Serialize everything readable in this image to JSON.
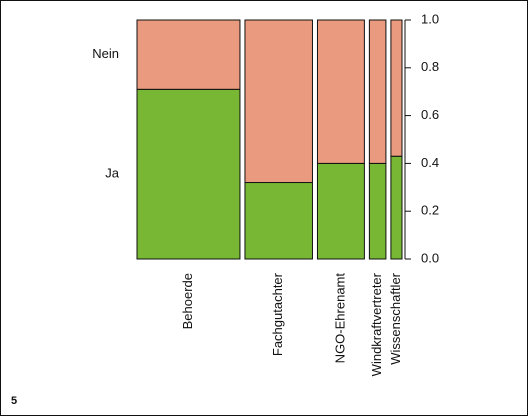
{
  "panel_label": "5",
  "chart_data": {
    "type": "mosaic",
    "categories": [
      "Behoerde",
      "Fachgutachter",
      "NGO-Ehrenamt",
      "Windkraftvertreter",
      "Wissenschaftler"
    ],
    "widths": [
      0.3836,
      0.2515,
      0.1748,
      0.0616,
      0.0413
    ],
    "series": [
      {
        "name": "Ja",
        "values": [
          0.71,
          0.32,
          0.4,
          0.4,
          0.43
        ],
        "color": "#77b733"
      },
      {
        "name": "Nein",
        "values": [
          0.29,
          0.68,
          0.6,
          0.6,
          0.57
        ],
        "color": "#ea9a7f"
      }
    ],
    "row_labels": [
      "Ja",
      "Nein"
    ],
    "right_axis": {
      "ticks": [
        "0.0",
        "0.2",
        "0.4",
        "0.6",
        "0.8",
        "1.0"
      ],
      "ylim": [
        0,
        1
      ]
    },
    "xlabel": "",
    "ylabel": "",
    "title": ""
  }
}
